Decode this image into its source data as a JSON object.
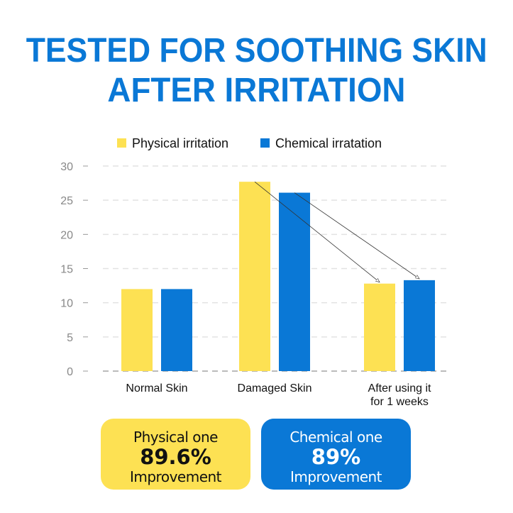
{
  "title_lines": [
    "TESTED FOR SOOTHING SKIN",
    "AFTER IRRITATION"
  ],
  "chart_data": {
    "type": "bar",
    "categories": [
      "Normal Skin",
      "Damaged Skin",
      "After using it for 1 weeks"
    ],
    "category_lines": [
      [
        "Normal Skin"
      ],
      [
        "Damaged Skin"
      ],
      [
        "After using it",
        "for 1 weeks"
      ]
    ],
    "series": [
      {
        "name": "Physical irritation",
        "color": "#fde153",
        "values": [
          12,
          27.7,
          12.8
        ]
      },
      {
        "name": "Chemical irratation",
        "color": "#0a78d6",
        "values": [
          12,
          26.1,
          13.3
        ]
      }
    ],
    "ylim": [
      0,
      30
    ],
    "yticks": [
      0,
      5,
      10,
      15,
      20,
      25,
      30
    ],
    "grid": true,
    "legend": "top-center",
    "annotations": [
      "arrow from Damaged Skin Physical to After Physical",
      "arrow from Damaged Skin Chemical to After Chemical"
    ]
  },
  "boxes": [
    {
      "line1": "Physical one",
      "value": "89.6%",
      "line3": "Improvement"
    },
    {
      "line1": "Chemical one",
      "value": "89%",
      "line3": "Improvement"
    }
  ]
}
